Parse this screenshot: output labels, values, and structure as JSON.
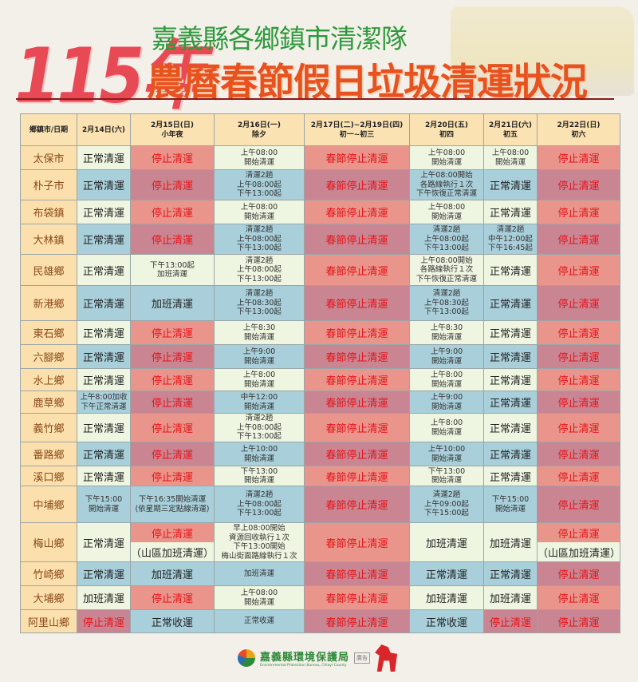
{
  "header": {
    "year": "115年",
    "subtitle": "嘉義縣各鄉鎮市清潔隊",
    "title": "農曆春節假日垃圾清運狀況"
  },
  "colors": {
    "normal_odd": "#eef5e0",
    "normal_even": "#a8cfda",
    "stop_odd": "#e9958b",
    "stop_even": "#c98592",
    "stop_text": "#e8141a",
    "header_bg": "#fbe2b2",
    "town_bg": "#fbe0ae"
  },
  "table": {
    "columns": [
      "鄉鎮市/日期",
      "2月14日(六)",
      "2月15日(日)\n小年夜",
      "2月16日(一)\n除夕",
      "2月17日(二)~2月19日(四)\n初一~初三",
      "2月20日(五)\n初四",
      "2月21日(六)\n初五",
      "2月22日(日)\n初六"
    ],
    "rows": [
      {
        "town": "太保市",
        "cells": [
          {
            "text": "正常清運",
            "kind": "n"
          },
          {
            "text": "停止清運",
            "kind": "s"
          },
          {
            "text": "上午08:00\n開始清運",
            "kind": "t"
          },
          {
            "text": "春節停止清運",
            "kind": "s"
          },
          {
            "text": "上午08:00\n開始清運",
            "kind": "t"
          },
          {
            "text": "上午08:00\n開始清運",
            "kind": "t"
          },
          {
            "text": "停止清運",
            "kind": "s"
          }
        ]
      },
      {
        "town": "朴子市",
        "cells": [
          {
            "text": "正常清運",
            "kind": "n"
          },
          {
            "text": "停止清運",
            "kind": "s"
          },
          {
            "text": "清運2趟\n上午08:00起\n下午13:00起",
            "kind": "t"
          },
          {
            "text": "春節停止清運",
            "kind": "s"
          },
          {
            "text": "上午08:00開始\n各路線執行１次\n下午恢復正常清運",
            "kind": "t"
          },
          {
            "text": "正常清運",
            "kind": "n"
          },
          {
            "text": "停止清運",
            "kind": "s"
          }
        ]
      },
      {
        "town": "布袋鎮",
        "cells": [
          {
            "text": "正常清運",
            "kind": "n"
          },
          {
            "text": "停止清運",
            "kind": "s"
          },
          {
            "text": "上午08:00\n開始清運",
            "kind": "t"
          },
          {
            "text": "春節停止清運",
            "kind": "s"
          },
          {
            "text": "上午08:00\n開始清運",
            "kind": "t"
          },
          {
            "text": "正常清運",
            "kind": "n"
          },
          {
            "text": "停止清運",
            "kind": "s"
          }
        ]
      },
      {
        "town": "大林鎮",
        "cells": [
          {
            "text": "正常清運",
            "kind": "n"
          },
          {
            "text": "停止清運",
            "kind": "s"
          },
          {
            "text": "清運2趟\n上午08:00起\n下午13:00起",
            "kind": "t"
          },
          {
            "text": "春節停止清運",
            "kind": "s"
          },
          {
            "text": "清運2趟\n上午08:00起\n下午13:00起",
            "kind": "t"
          },
          {
            "text": "清運2趟\n中午12:00起\n下午16:45起",
            "kind": "t"
          },
          {
            "text": "停止清運",
            "kind": "s"
          }
        ]
      },
      {
        "town": "民雄鄉",
        "cells": [
          {
            "text": "正常清運",
            "kind": "n"
          },
          {
            "text": "下午13:00起\n加班清運",
            "kind": "t"
          },
          {
            "text": "清運2趟\n上午08:00起\n下午13:00起",
            "kind": "t"
          },
          {
            "text": "春節停止清運",
            "kind": "s"
          },
          {
            "text": "上午08:00開始\n各路線執行１次\n下午恢復正常清運",
            "kind": "t"
          },
          {
            "text": "正常清運",
            "kind": "n"
          },
          {
            "text": "停止清運",
            "kind": "s"
          }
        ]
      },
      {
        "town": "新港鄉",
        "cells": [
          {
            "text": "正常清運",
            "kind": "n"
          },
          {
            "text": "加班清運",
            "kind": "n"
          },
          {
            "text": "清運2趟\n上午08:30起\n下午13:00起",
            "kind": "t"
          },
          {
            "text": "春節停止清運",
            "kind": "s"
          },
          {
            "text": "清運2趟\n上午08:30起\n下午13:00起",
            "kind": "t"
          },
          {
            "text": "正常清運",
            "kind": "n"
          },
          {
            "text": "停止清運",
            "kind": "s"
          }
        ]
      },
      {
        "town": "東石鄉",
        "cells": [
          {
            "text": "正常清運",
            "kind": "n"
          },
          {
            "text": "停止清運",
            "kind": "s"
          },
          {
            "text": "上午8:30\n開始清運",
            "kind": "t"
          },
          {
            "text": "春節停止清運",
            "kind": "s"
          },
          {
            "text": "上午8:30\n開始清運",
            "kind": "t"
          },
          {
            "text": "正常清運",
            "kind": "n"
          },
          {
            "text": "停止清運",
            "kind": "s"
          }
        ]
      },
      {
        "town": "六腳鄉",
        "cells": [
          {
            "text": "正常清運",
            "kind": "n"
          },
          {
            "text": "停止清運",
            "kind": "s"
          },
          {
            "text": "上午9:00\n開始清運",
            "kind": "t"
          },
          {
            "text": "春節停止清運",
            "kind": "s"
          },
          {
            "text": "上午9:00\n開始清運",
            "kind": "t"
          },
          {
            "text": "正常清運",
            "kind": "n"
          },
          {
            "text": "停止清運",
            "kind": "s"
          }
        ]
      },
      {
        "town": "水上鄉",
        "cells": [
          {
            "text": "正常清運",
            "kind": "n"
          },
          {
            "text": "停止清運",
            "kind": "s"
          },
          {
            "text": "上午8:00\n開始清運",
            "kind": "t"
          },
          {
            "text": "春節停止清運",
            "kind": "s"
          },
          {
            "text": "上午8:00\n開始清運",
            "kind": "t"
          },
          {
            "text": "正常清運",
            "kind": "n"
          },
          {
            "text": "停止清運",
            "kind": "s"
          }
        ]
      },
      {
        "town": "鹿草鄉",
        "cells": [
          {
            "text": "上午8:00加收\n下午正常清運",
            "kind": "t"
          },
          {
            "text": "停止清運",
            "kind": "s"
          },
          {
            "text": "中午12:00\n開始清運",
            "kind": "t"
          },
          {
            "text": "春節停止清運",
            "kind": "s"
          },
          {
            "text": "上午9:00\n開始清運",
            "kind": "t"
          },
          {
            "text": "正常清運",
            "kind": "n"
          },
          {
            "text": "停止清運",
            "kind": "s"
          }
        ]
      },
      {
        "town": "義竹鄉",
        "cells": [
          {
            "text": "正常清運",
            "kind": "n"
          },
          {
            "text": "停止清運",
            "kind": "s"
          },
          {
            "text": "清運2趟\n上午08:00起\n下午13:00起",
            "kind": "t"
          },
          {
            "text": "春節停止清運",
            "kind": "s"
          },
          {
            "text": "上午8:00\n開始清運",
            "kind": "t"
          },
          {
            "text": "正常清運",
            "kind": "n"
          },
          {
            "text": "停止清運",
            "kind": "s"
          }
        ]
      },
      {
        "town": "番路鄉",
        "cells": [
          {
            "text": "正常清運",
            "kind": "n"
          },
          {
            "text": "停止清運",
            "kind": "s"
          },
          {
            "text": "上午10:00\n開始清運",
            "kind": "t"
          },
          {
            "text": "春節停止清運",
            "kind": "s"
          },
          {
            "text": "上午10:00\n開始清運",
            "kind": "t"
          },
          {
            "text": "正常清運",
            "kind": "n"
          },
          {
            "text": "停止清運",
            "kind": "s"
          }
        ]
      },
      {
        "town": "溪口鄉",
        "cells": [
          {
            "text": "正常清運",
            "kind": "n"
          },
          {
            "text": "停止清運",
            "kind": "s"
          },
          {
            "text": "下午13:00\n開始清運",
            "kind": "t"
          },
          {
            "text": "春節停止清運",
            "kind": "s"
          },
          {
            "text": "下午13:00\n開始清運",
            "kind": "t"
          },
          {
            "text": "正常清運",
            "kind": "n"
          },
          {
            "text": "停止清運",
            "kind": "s"
          }
        ]
      },
      {
        "town": "中埔鄉",
        "cells": [
          {
            "text": "下午15:00\n開始清運",
            "kind": "t"
          },
          {
            "text": "下午16:35開始清運\n(依星期三定點線清運)",
            "kind": "t"
          },
          {
            "text": "清運2趟\n上午08:00起\n下午13:00起",
            "kind": "t"
          },
          {
            "text": "春節停止清運",
            "kind": "s"
          },
          {
            "text": "清運2趟\n上午09:00起\n下午15:00起",
            "kind": "t"
          },
          {
            "text": "下午15:00\n開始清運",
            "kind": "t"
          },
          {
            "text": "停止清運",
            "kind": "s"
          }
        ]
      },
      {
        "town": "梅山鄉",
        "cells": [
          {
            "text": "正常清運",
            "kind": "n"
          },
          {
            "split": [
              {
                "text": "停止清運",
                "kind": "s"
              },
              {
                "text": "（山區加班清運）",
                "kind": "n"
              }
            ]
          },
          {
            "text": "早上08:00開始\n資源回收執行１次\n下午13:00開始\n梅山街面路線執行１次",
            "kind": "t"
          },
          {
            "text": "春節停止清運",
            "kind": "s"
          },
          {
            "text": "加班清運",
            "kind": "n"
          },
          {
            "text": "加班清運",
            "kind": "n"
          },
          {
            "split": [
              {
                "text": "停止清運",
                "kind": "s"
              },
              {
                "text": "（山區加班清運）",
                "kind": "n"
              }
            ]
          }
        ]
      },
      {
        "town": "竹崎鄉",
        "cells": [
          {
            "text": "正常清運",
            "kind": "n"
          },
          {
            "text": "加班清運",
            "kind": "n"
          },
          {
            "text": "加班清運",
            "kind": "t"
          },
          {
            "text": "春節停止清運",
            "kind": "s"
          },
          {
            "text": "正常清運",
            "kind": "n"
          },
          {
            "text": "正常清運",
            "kind": "n"
          },
          {
            "text": "停止清運",
            "kind": "s"
          }
        ]
      },
      {
        "town": "大埔鄉",
        "cells": [
          {
            "text": "加班清運",
            "kind": "n"
          },
          {
            "text": "停止清運",
            "kind": "s"
          },
          {
            "text": "上午08:00\n開始清運",
            "kind": "t"
          },
          {
            "text": "春節停止清運",
            "kind": "s"
          },
          {
            "text": "加班清運",
            "kind": "n"
          },
          {
            "text": "加班清運",
            "kind": "n"
          },
          {
            "text": "停止清運",
            "kind": "s"
          }
        ]
      },
      {
        "town": "阿里山鄉",
        "cells": [
          {
            "text": "停止清運",
            "kind": "s"
          },
          {
            "text": "正常收運",
            "kind": "n"
          },
          {
            "text": "正常收運",
            "kind": "t"
          },
          {
            "text": "春節停止清運",
            "kind": "s"
          },
          {
            "text": "正常收運",
            "kind": "n"
          },
          {
            "text": "停止清運",
            "kind": "s"
          },
          {
            "text": "停止清運",
            "kind": "s"
          }
        ]
      }
    ]
  },
  "footer": {
    "agency_zh": "嘉義縣環境保護局",
    "agency_en": "Environmental Protection Bureau, Chiayi County",
    "stamp": "廣告",
    "logo_icon": "epb-logo-icon",
    "decoration_icon": "red-horse-icon"
  }
}
